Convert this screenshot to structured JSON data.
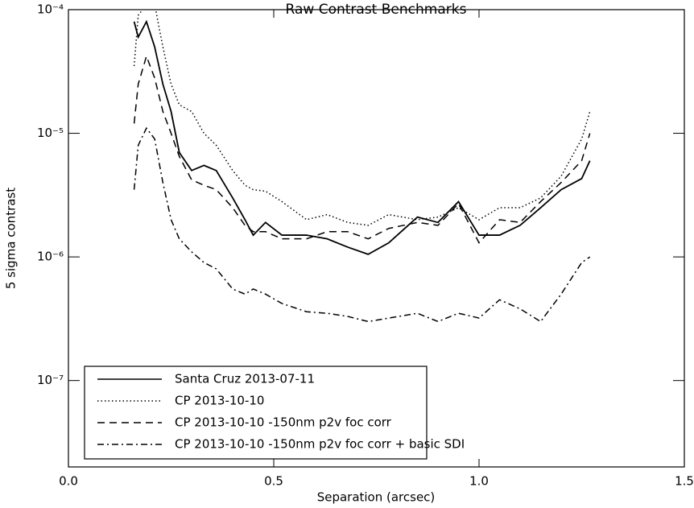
{
  "chart_data": {
    "type": "line",
    "title": "Raw Contrast Benchmarks",
    "xlabel": "Separation (arcsec)",
    "ylabel": "5 sigma contrast",
    "log_y": true,
    "legend": "lower left",
    "xlim": [
      0,
      1.5
    ],
    "xticks": [
      {
        "value": 0,
        "label": "0.0"
      },
      {
        "value": 0.5,
        "label": "0.5"
      },
      {
        "value": 1,
        "label": "1.0"
      },
      {
        "value": 1.5,
        "label": "1.5"
      }
    ],
    "ylim": [
      2e-08,
      0.0001
    ],
    "yticks": [
      {
        "value": 1e-07,
        "label": "10⁻⁷"
      },
      {
        "value": 1e-06,
        "label": "10⁻⁶"
      },
      {
        "value": 1e-05,
        "label": "10⁻⁵"
      },
      {
        "value": 0.0001,
        "label": "10⁻⁴"
      }
    ],
    "x": [
      0.16,
      0.17,
      0.19,
      0.21,
      0.23,
      0.25,
      0.27,
      0.3,
      0.33,
      0.36,
      0.4,
      0.43,
      0.45,
      0.48,
      0.52,
      0.58,
      0.63,
      0.68,
      0.73,
      0.78,
      0.85,
      0.9,
      0.95,
      1.0,
      1.05,
      1.1,
      1.15,
      1.2,
      1.25,
      1.27
    ],
    "series": [
      {
        "name": "Santa Cruz 2013-07-11",
        "color": "#000000",
        "dash": "solid",
        "values": [
          8e-05,
          6e-05,
          8e-05,
          5e-05,
          2.5e-05,
          1.5e-05,
          7e-06,
          5e-06,
          5.5e-06,
          5e-06,
          3e-06,
          2e-06,
          1.5e-06,
          1.9e-06,
          1.5e-06,
          1.5e-06,
          1.4e-06,
          1.2e-06,
          1.05e-06,
          1.3e-06,
          2.1e-06,
          1.9e-06,
          2.8e-06,
          1.5e-06,
          1.5e-06,
          1.8e-06,
          2.5e-06,
          3.5e-06,
          4.3e-06,
          6e-06
        ]
      },
      {
        "name": "CP 2013-10-10",
        "color": "#000000",
        "dash": "dotted",
        "values": [
          3.5e-05,
          9e-05,
          0.00011,
          0.00011,
          5e-05,
          2.5e-05,
          1.7e-05,
          1.5e-05,
          1e-05,
          8e-06,
          5e-06,
          3.8e-06,
          3.5e-06,
          3.4e-06,
          2.8e-06,
          2e-06,
          2.2e-06,
          1.9e-06,
          1.8e-06,
          2.2e-06,
          2e-06,
          2.1e-06,
          2.5e-06,
          2e-06,
          2.5e-06,
          2.5e-06,
          3e-06,
          4.5e-06,
          9e-06,
          1.5e-05
        ]
      },
      {
        "name": "CP 2013-10-10 -150nm p2v foc corr",
        "color": "#000000",
        "dash": "dashed",
        "values": [
          1.2e-05,
          2.5e-05,
          4.2e-05,
          2.8e-05,
          1.5e-05,
          1e-05,
          6.5e-06,
          4.2e-06,
          3.8e-06,
          3.5e-06,
          2.5e-06,
          1.8e-06,
          1.6e-06,
          1.6e-06,
          1.4e-06,
          1.4e-06,
          1.6e-06,
          1.6e-06,
          1.4e-06,
          1.7e-06,
          1.9e-06,
          1.8e-06,
          2.7e-06,
          1.3e-06,
          2e-06,
          1.9e-06,
          2.8e-06,
          4e-06,
          6e-06,
          1e-05
        ]
      },
      {
        "name": "CP 2013-10-10 -150nm p2v foc corr + basic SDI",
        "color": "#000000",
        "dash": "dashdot",
        "values": [
          3.5e-06,
          8e-06,
          1.1e-05,
          9e-06,
          4e-06,
          2e-06,
          1.4e-06,
          1.1e-06,
          9e-07,
          8e-07,
          5.5e-07,
          5e-07,
          5.5e-07,
          5e-07,
          4.2e-07,
          3.6e-07,
          3.5e-07,
          3.3e-07,
          3e-07,
          3.2e-07,
          3.5e-07,
          3e-07,
          3.5e-07,
          3.2e-07,
          4.5e-07,
          3.8e-07,
          3e-07,
          5e-07,
          9e-07,
          1e-06
        ]
      }
    ]
  }
}
